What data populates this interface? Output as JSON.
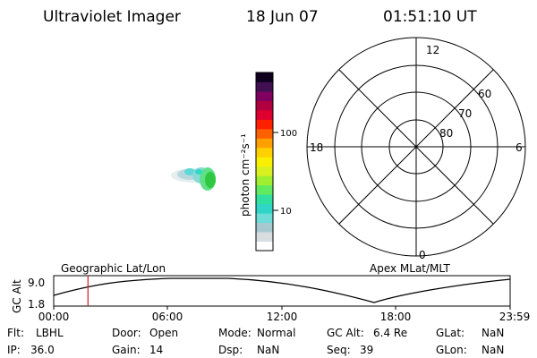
{
  "header": {
    "title": "Ultraviolet Imager",
    "date": "18 Jun 07",
    "time": "01:51:10 UT"
  },
  "colorbar": {
    "label": "photon cm⁻²s⁻¹",
    "ticks": [
      "100",
      "10"
    ],
    "colors": [
      "#ffffff",
      "#d8dde0",
      "#a8c8d0",
      "#70dcd8",
      "#2fd6c8",
      "#30e0a0",
      "#60ea60",
      "#a0ee30",
      "#d8f020",
      "#f8f000",
      "#ffd000",
      "#ffa000",
      "#ff6000",
      "#ff2000",
      "#e00030",
      "#b00040",
      "#800060",
      "#401050",
      "#100020"
    ]
  },
  "polar": {
    "mlt_labels": {
      "top": "12",
      "bottom": "0",
      "left": "18",
      "right": "6"
    },
    "lat_labels": [
      "60",
      "70",
      "80"
    ]
  },
  "timeline": {
    "left_label": "Geographic Lat/Lon",
    "right_label": "Apex MLat/MLT",
    "axis_label": "GC Alt",
    "y_ticks": [
      "9.0",
      "1.8"
    ],
    "x_ticks": [
      "00:00",
      "06:00",
      "12:00",
      "18:00",
      "23:59"
    ],
    "current_time_fraction": 0.075
  },
  "status": {
    "flt_label": "Flt:",
    "flt_value": "LBHL",
    "door_label": "Door:",
    "door_value": "Open",
    "mode_label": "Mode:",
    "mode_value": "Normal",
    "gcalt_label": "GC Alt:",
    "gcalt_value": "6.4 Re",
    "glat_label": "GLat:",
    "glat_value": "NaN",
    "ip_label": "IP:",
    "ip_value": "36.0",
    "gain_label": "Gain:",
    "gain_value": "14",
    "dsp_label": "Dsp:",
    "dsp_value": "NaN",
    "seq_label": "Seq:",
    "seq_value": "39",
    "glon_label": "GLon:",
    "glon_value": "NaN"
  }
}
